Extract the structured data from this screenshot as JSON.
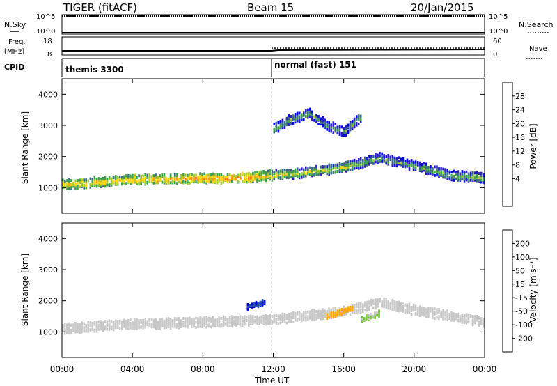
{
  "header": {
    "left": "TIGER (fitACF)",
    "center": "Beam 15",
    "right": "20/Jan/2015"
  },
  "strips": {
    "nsky": {
      "label": "N.Sky",
      "tick_top": "10^5",
      "tick_bottom": "10^0",
      "right_label": "N.Search",
      "right_tick_top": "10^5",
      "right_tick_bottom": "10^0"
    },
    "freq": {
      "label": "Freq.",
      "unit": "[MHz]",
      "tick_top": "18",
      "tick_bottom": "8",
      "right_label": "Nave",
      "right_tick_top": "60",
      "right_tick_bottom": "0"
    },
    "cpid": {
      "label": "CPID",
      "modes": [
        {
          "name": "themis 3300"
        },
        {
          "name": "normal (fast) 151"
        }
      ]
    }
  },
  "panels": {
    "power": {
      "ylabel": "Slant Range [km]",
      "cbar_label": "Power [dB]",
      "cbar_ticks": [
        "28",
        "24",
        "20",
        "16",
        "12",
        "8",
        "4"
      ],
      "cbar_colors": [
        "#ff0000",
        "#ff6600",
        "#ffa200",
        "#ffd400",
        "#a4c82c",
        "#3fa34a",
        "#3b6e86",
        "#2b1fc8",
        "#0000ff"
      ]
    },
    "velocity": {
      "ylabel": "Slant Range [km]",
      "cbar_label": "Velocity [m s⁻¹]",
      "cbar_ticks": [
        "200",
        "100",
        "50",
        "15",
        "-15",
        "-50",
        "-100",
        "-200"
      ],
      "cbar_colors": [
        "#0000ff",
        "#2455a0",
        "#2f8f4a",
        "#76c936",
        "#c8c8c8",
        "#ffa500",
        "#ff7700",
        "#ff2200",
        "#ff0000"
      ]
    }
  },
  "xaxis": {
    "label": "Time UT",
    "ticks": [
      "00:00",
      "04:00",
      "08:00",
      "12:00",
      "16:00",
      "20:00",
      "00:00"
    ]
  },
  "chart_data": [
    {
      "type": "heatmap",
      "title": "Power",
      "x": "Time UT (hours)",
      "xlim": [
        0,
        24
      ],
      "ylabel": "Slant Range [km]",
      "ylim": [
        180,
        4500
      ],
      "yticks": [
        1000,
        2000,
        3000,
        4000
      ],
      "colorbar": {
        "label": "Power [dB]",
        "ticks": [
          4,
          8,
          12,
          16,
          20,
          24,
          28
        ],
        "range": [
          0,
          30
        ]
      },
      "features": [
        {
          "name": "main band",
          "x": [
            0,
            4,
            8,
            10,
            12,
            14,
            16,
            18,
            20,
            22,
            24
          ],
          "range_km": [
            1100,
            1250,
            1300,
            1300,
            1400,
            1500,
            1650,
            1950,
            1700,
            1400,
            1300
          ],
          "power_db": [
            18,
            20,
            22,
            24,
            18,
            16,
            16,
            12,
            12,
            14,
            14
          ]
        },
        {
          "name": "upper echoes",
          "x": [
            12,
            13,
            14,
            15,
            16,
            17
          ],
          "range_km": [
            2900,
            3200,
            3400,
            3000,
            2800,
            3300
          ],
          "power_db": [
            14,
            12,
            12,
            10,
            12,
            12
          ]
        }
      ]
    },
    {
      "type": "heatmap",
      "title": "Velocity",
      "x": "Time UT (hours)",
      "xlim": [
        0,
        24
      ],
      "ylabel": "Slant Range [km]",
      "ylim": [
        180,
        4500
      ],
      "yticks": [
        1000,
        2000,
        3000,
        4000
      ],
      "colorbar": {
        "label": "Velocity [m s⁻¹]",
        "ticks": [
          -200,
          -100,
          -50,
          -15,
          15,
          50,
          100,
          200
        ],
        "range": [
          -250,
          250
        ]
      },
      "features": [
        {
          "name": "ground scatter band",
          "x": [
            0,
            4,
            8,
            12,
            16,
            18,
            20,
            24
          ],
          "range_km": [
            1100,
            1250,
            1300,
            1400,
            1650,
            1950,
            1700,
            1300
          ],
          "velocity": 0
        },
        {
          "name": "positive velocity patch",
          "x": [
            10.5,
            11.5
          ],
          "range_km": [
            1800,
            1950
          ],
          "velocity": 200
        },
        {
          "name": "negative velocity patch",
          "x": [
            15,
            16.5
          ],
          "range_km": [
            1500,
            1750
          ],
          "velocity": -50
        },
        {
          "name": "green patch",
          "x": [
            17,
            18
          ],
          "range_km": [
            1400,
            1600
          ],
          "velocity": 50
        }
      ]
    }
  ]
}
